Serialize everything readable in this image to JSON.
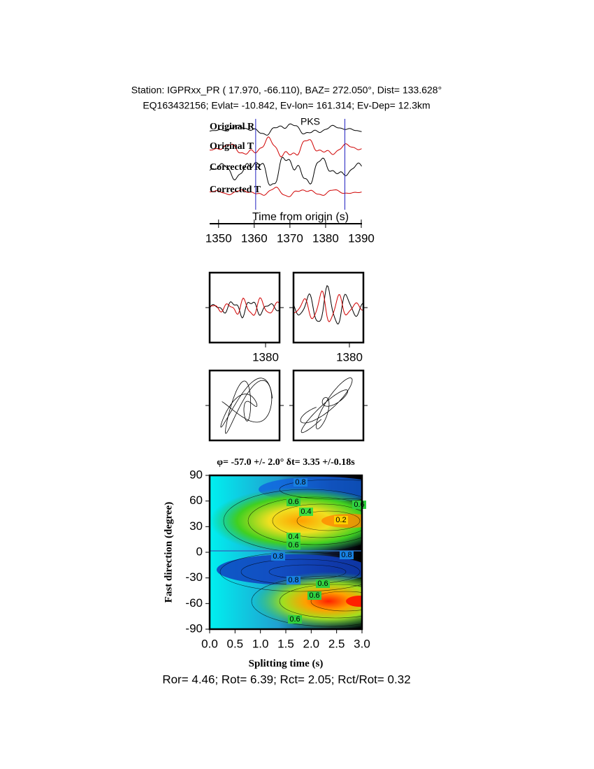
{
  "header": {
    "line1": "Station: IGPRxx_PR (  17.970,  -66.110), BAZ=  272.050°, Dist=  133.628°",
    "line2": "EQ163432156; Evlat= -10.842, Ev-lon= 161.314; Ev-Dep= 12.3km"
  },
  "chart_data": [
    {
      "type": "waveform",
      "trace_labels": [
        "Original R",
        "Original T",
        "Corrected R",
        "Corrected T"
      ],
      "phase": "PKS",
      "xlabel": "Time from origin (s)",
      "xlim": [
        1347.5,
        1390.2
      ],
      "xticks": [
        1350,
        1360,
        1370,
        1380,
        1390
      ],
      "window": [
        1360.4,
        1385.4
      ]
    },
    {
      "type": "waveform",
      "xlim": [
        1364,
        1384
      ],
      "xticks": [
        1380
      ]
    },
    {
      "type": "waveform",
      "xlim": [
        1364,
        1384
      ],
      "xticks": [
        1380
      ]
    },
    {
      "type": "contour",
      "title": "φ= -57.0 +/- 2.0° δt= 3.35 +/-0.18s",
      "xlabel": "Splitting time (s)",
      "ylabel": "Fast direction (degree)",
      "xlim": [
        0,
        3
      ],
      "xticks": [
        {
          "value": 0,
          "label": "0.0"
        },
        {
          "value": 0.5,
          "label": "0.5"
        },
        {
          "value": 1,
          "label": "1.0"
        },
        {
          "value": 1.5,
          "label": "1.5"
        },
        {
          "value": 2,
          "label": "2.0"
        },
        {
          "value": 2.5,
          "label": "2.5"
        },
        {
          "value": 3,
          "label": "3.0"
        }
      ],
      "ylim": [
        -90,
        90
      ],
      "yticks": [
        -90,
        -60,
        -30,
        0,
        30,
        60,
        90
      ],
      "contour_labels": [
        0.8,
        0.6,
        0.4,
        0.2,
        0.4,
        0.6,
        0.8,
        0.8,
        0.8,
        0.6,
        0.6,
        0.6,
        0.6
      ]
    }
  ],
  "footer": "Ror= 4.46; Rot= 6.39; Rct= 2.05; Rct/Rot= 0.32"
}
